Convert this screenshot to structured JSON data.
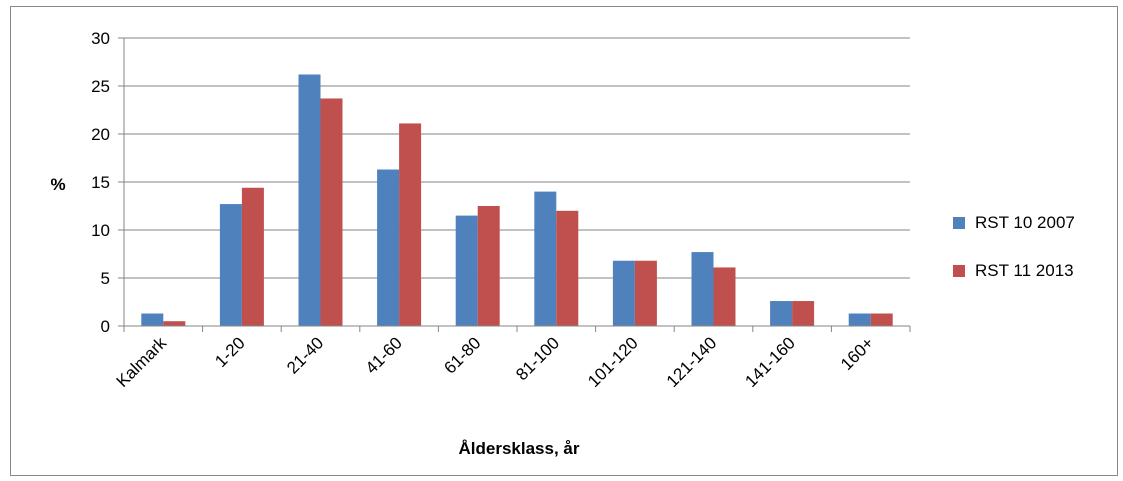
{
  "chart_data": {
    "type": "bar",
    "categories": [
      "Kalmark",
      "1-20",
      "21-40",
      "41-60",
      "61-80",
      "81-100",
      "101-120",
      "121-140",
      "141-160",
      "160+"
    ],
    "series": [
      {
        "name": "RST 10 2007",
        "color": "#4F81BD",
        "values": [
          1.3,
          12.7,
          26.2,
          16.3,
          11.5,
          14.0,
          6.8,
          7.7,
          2.6,
          1.3
        ]
      },
      {
        "name": "RST 11 2013",
        "color": "#C0504D",
        "values": [
          0.5,
          14.4,
          23.7,
          21.1,
          12.5,
          12.0,
          6.8,
          6.1,
          2.6,
          1.3
        ]
      }
    ],
    "ylabel": "%",
    "xlabel": "Åldersklass,  år",
    "ylim": [
      0,
      30
    ],
    "yticks": [
      "0",
      "5",
      "10",
      "15",
      "20",
      "25",
      "30"
    ],
    "grid": true,
    "legend_position": "right"
  }
}
